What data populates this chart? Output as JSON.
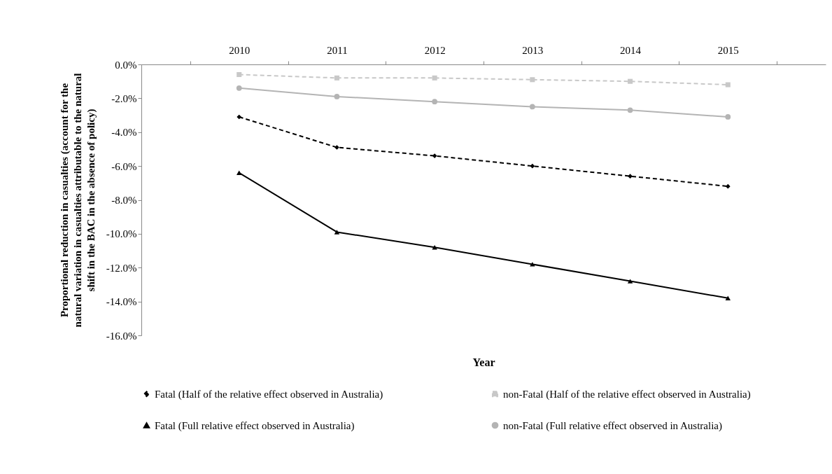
{
  "chart_data": {
    "type": "line",
    "xlabel": "Year",
    "ylabel": "Proportional reduction in casualties (account for the natural variation in casualties attributable to the natural shift in the BAC in the absence of policy)",
    "categories": [
      "2010",
      "2011",
      "2012",
      "2013",
      "2014",
      "2015"
    ],
    "series": [
      {
        "name": "Fatal (Half of the relative effect observed in Australia)",
        "color": "#000000",
        "marker": "diamond",
        "line_style": "dashed",
        "values": [
          -3.1,
          -4.9,
          -5.4,
          -6.0,
          -6.6,
          -7.2
        ]
      },
      {
        "name": "non-Fatal (Half of the relative effect observed in Australia)",
        "color": "#c8c8c8",
        "marker": "square",
        "line_style": "dashed",
        "values": [
          -0.6,
          -0.8,
          -0.8,
          -0.9,
          -1.0,
          -1.2
        ]
      },
      {
        "name": "Fatal (Full relative effect observed in Australia)",
        "color": "#000000",
        "marker": "triangle",
        "line_style": "solid",
        "values": [
          -6.4,
          -9.9,
          -10.8,
          -11.8,
          -12.8,
          -13.8
        ]
      },
      {
        "name": "non-Fatal (Full relative effect observed in Australia)",
        "color": "#b4b4b4",
        "marker": "circle",
        "line_style": "solid",
        "values": [
          -1.4,
          -1.9,
          -2.2,
          -2.5,
          -2.7,
          -3.1
        ]
      }
    ],
    "ylim": [
      -16,
      0
    ],
    "yticks": [
      {
        "value": 0,
        "label": "0.0%"
      },
      {
        "value": -2,
        "label": "-2.0%"
      },
      {
        "value": -4,
        "label": "-4.0%"
      },
      {
        "value": -6,
        "label": "-6.0%"
      },
      {
        "value": -8,
        "label": "-8.0%"
      },
      {
        "value": -10,
        "label": "-10.0%"
      },
      {
        "value": -12,
        "label": "-12.0%"
      },
      {
        "value": -14,
        "label": "-14.0%"
      },
      {
        "value": -16,
        "label": "-16.0%"
      }
    ],
    "grid": false,
    "legend": "bottom"
  }
}
